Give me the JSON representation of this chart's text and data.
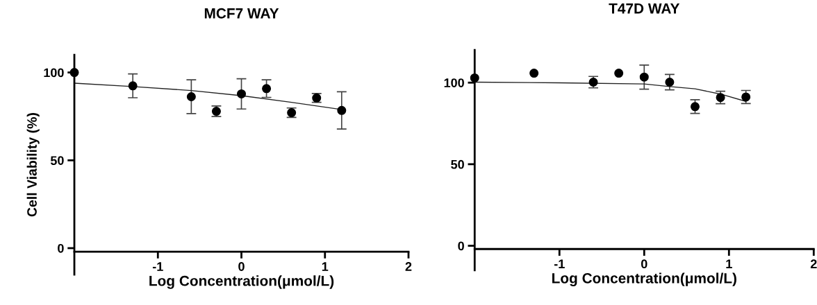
{
  "chart_data": [
    {
      "type": "scatter",
      "title": "MCF7 WAY",
      "xlabel": "Log Concentration(μmol/L)",
      "ylabel": "Cell Viability (%)",
      "xlim": [
        -2,
        2
      ],
      "ylim": [
        -15,
        110
      ],
      "xticks": [
        -1,
        0,
        1,
        2
      ],
      "yticks": [
        0,
        50,
        100
      ],
      "grid": false,
      "legend": false,
      "series": [
        {
          "marker": "circle",
          "color": "#000000",
          "x": [
            -2,
            -1.3,
            -0.6,
            -0.3,
            0,
            0.3,
            0.6,
            0.9,
            1.2
          ],
          "values": [
            100,
            92.4,
            86.2,
            77.9,
            87.8,
            90.8,
            77.1,
            85.5,
            78.4
          ],
          "errors": [
            null,
            6.8,
            9.6,
            3,
            8.6,
            5,
            2.7,
            2.5,
            10.6
          ]
        },
        {
          "type": "line",
          "color": "#222222",
          "x": [
            -2,
            -1.3,
            -0.6,
            0,
            0.6,
            1.2
          ],
          "values": [
            93.9,
            92,
            89.7,
            86.8,
            83,
            78.9
          ]
        }
      ]
    },
    {
      "type": "scatter",
      "title": "T47D WAY",
      "xlabel": "Log Concentration(μmol/L)",
      "xlim": [
        -2,
        2
      ],
      "ylim": [
        -15,
        120
      ],
      "xticks": [
        -1,
        0,
        1,
        2
      ],
      "yticks": [
        0,
        50,
        100
      ],
      "grid": false,
      "legend": false,
      "series": [
        {
          "marker": "circle",
          "color": "#000000",
          "x": [
            -2,
            -1.3,
            -0.6,
            -0.3,
            0,
            0.3,
            0.6,
            0.9,
            1.2
          ],
          "values": [
            102.9,
            105.8,
            100.3,
            105.8,
            103.4,
            100.3,
            85.3,
            90.9,
            91.2
          ],
          "errors": [
            null,
            null,
            3.5,
            null,
            7.4,
            4.7,
            4.2,
            3.8,
            4
          ]
        },
        {
          "type": "line",
          "color": "#222222",
          "x": [
            -2,
            -1,
            0,
            0.3,
            0.6,
            0.9,
            1.2
          ],
          "values": [
            100.3,
            99.9,
            99.2,
            97.6,
            96.2,
            93,
            88.5
          ]
        }
      ]
    }
  ]
}
